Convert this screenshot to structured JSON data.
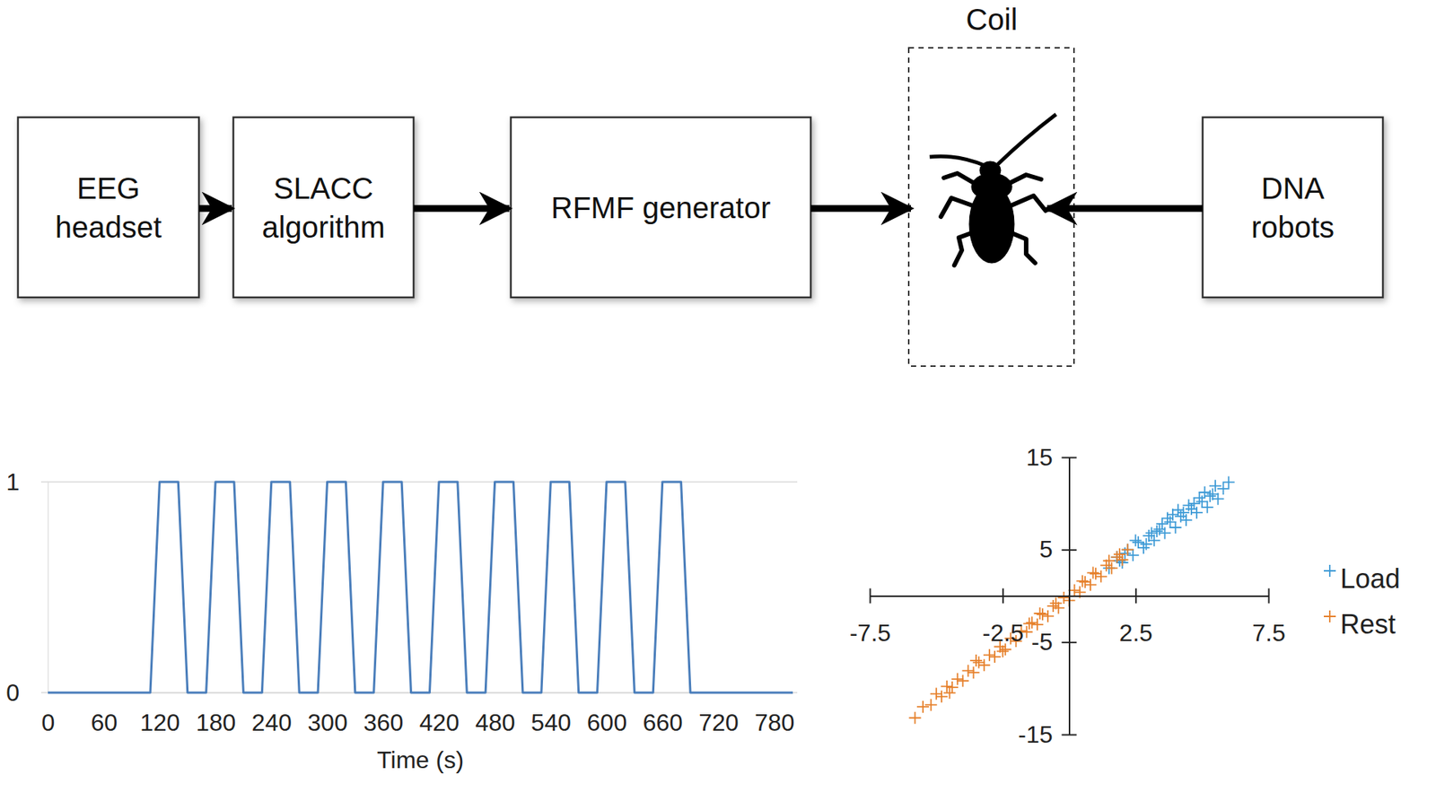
{
  "diagram": {
    "boxes": [
      {
        "lines": [
          "EEG",
          "headset"
        ]
      },
      {
        "lines": [
          "SLACC",
          "algorithm"
        ]
      },
      {
        "lines": [
          "RFMF generator"
        ]
      },
      {
        "lines": [
          "DNA",
          "robots"
        ]
      }
    ],
    "coil": "Coil"
  },
  "chart_data": [
    {
      "type": "line",
      "color": "#4a7ebb",
      "grid": true,
      "x_label": "Time (s)",
      "x": [
        0,
        10,
        20,
        30,
        40,
        50,
        60,
        70,
        80,
        90,
        100,
        110,
        120,
        130,
        140,
        150,
        160,
        170,
        180,
        190,
        200,
        210,
        220,
        230,
        240,
        250,
        260,
        270,
        280,
        290,
        300,
        310,
        320,
        330,
        340,
        350,
        360,
        370,
        380,
        390,
        400,
        410,
        420,
        430,
        440,
        450,
        460,
        470,
        480,
        490,
        500,
        510,
        520,
        530,
        540,
        550,
        560,
        570,
        580,
        590,
        600,
        610,
        620,
        630,
        640,
        650,
        660,
        670,
        680,
        690,
        700,
        710,
        720,
        730,
        740,
        750,
        760,
        770,
        780,
        790,
        800
      ],
      "values": [
        0,
        0,
        0,
        0,
        0,
        0,
        0,
        0,
        0,
        0,
        0,
        0,
        1,
        1,
        1,
        0,
        0,
        0,
        1,
        1,
        1,
        0,
        0,
        0,
        1,
        1,
        1,
        0,
        0,
        0,
        1,
        1,
        1,
        0,
        0,
        0,
        1,
        1,
        1,
        0,
        0,
        0,
        1,
        1,
        1,
        0,
        0,
        0,
        1,
        1,
        1,
        0,
        0,
        0,
        1,
        1,
        1,
        0,
        0,
        0,
        1,
        1,
        1,
        0,
        0,
        0,
        1,
        1,
        1,
        0,
        0,
        0,
        0,
        0,
        0,
        0,
        0,
        0,
        0,
        0,
        0
      ],
      "xlim": [
        0,
        800
      ],
      "xticks": [
        0,
        60,
        120,
        180,
        240,
        300,
        360,
        420,
        480,
        540,
        600,
        660,
        720,
        780
      ],
      "ylim": [
        0,
        1
      ],
      "yticks": [
        0,
        1
      ]
    },
    {
      "type": "scatter",
      "legend": "right",
      "xlim": [
        -7.5,
        7.5
      ],
      "xticks": [
        -7.5,
        -2.5,
        2.5,
        7.5
      ],
      "ylim": [
        -15,
        15
      ],
      "yticks": [
        -15,
        -5,
        5,
        15
      ],
      "series": [
        {
          "name": "Load",
          "color": "#3d9ad6",
          "marker": "plus",
          "x": [
            1.5,
            1.8,
            2.0,
            2.2,
            2.4,
            2.6,
            2.8,
            3.0,
            3.2,
            3.4,
            3.6,
            3.8,
            4.0,
            4.2,
            4.4,
            4.6,
            4.8,
            5.0,
            5.2,
            5.4,
            5.6,
            5.8,
            2.5,
            3.1,
            3.7,
            4.3,
            4.9,
            5.5,
            2.9,
            3.5,
            4.1,
            4.7,
            5.3,
            6.0,
            2.1,
            3.3,
            3.9,
            4.5,
            1.9,
            5.1
          ],
          "values": [
            3.0,
            4.2,
            3.6,
            5.0,
            4.4,
            5.8,
            5.2,
            6.5,
            6.0,
            7.2,
            6.8,
            8.0,
            7.4,
            8.6,
            8.2,
            9.4,
            9.0,
            10.2,
            9.6,
            11.0,
            10.5,
            11.6,
            6.0,
            6.8,
            8.4,
            9.0,
            10.6,
            11.9,
            5.6,
            7.8,
            9.3,
            10.0,
            10.8,
            12.3,
            4.6,
            7.0,
            8.8,
            9.8,
            3.8,
            11.2
          ]
        },
        {
          "name": "Rest",
          "color": "#e6802b",
          "marker": "plus",
          "x": [
            -5.8,
            -5.5,
            -5.2,
            -5.0,
            -4.8,
            -4.6,
            -4.4,
            -4.2,
            -4.0,
            -3.8,
            -3.6,
            -3.4,
            -3.2,
            -3.0,
            -2.8,
            -2.6,
            -2.4,
            -2.2,
            -2.0,
            -1.8,
            -1.6,
            -1.4,
            -1.2,
            -1.0,
            -0.8,
            -0.6,
            -0.4,
            -0.2,
            0,
            0.2,
            0.4,
            0.6,
            0.8,
            1.0,
            1.2,
            1.4,
            1.6,
            1.8,
            2.0,
            2.2,
            -3.5,
            -2.5,
            -1.5,
            -0.5,
            0.5,
            1.5,
            -4.5,
            -1.1,
            0.9,
            1.9
          ],
          "values": [
            -13.2,
            -12.0,
            -11.8,
            -10.6,
            -10.9,
            -9.8,
            -9.9,
            -9.0,
            -9.2,
            -8.1,
            -8.3,
            -7.2,
            -7.5,
            -6.4,
            -6.6,
            -5.5,
            -5.8,
            -4.6,
            -4.9,
            -3.8,
            -3.9,
            -2.9,
            -3.1,
            -2.0,
            -2.2,
            -1.1,
            -1.3,
            -0.2,
            -0.5,
            0.6,
            0.4,
            1.5,
            1.2,
            2.4,
            2.1,
            3.3,
            3.0,
            4.2,
            3.9,
            5.0,
            -7.0,
            -6.0,
            -3.0,
            -0.8,
            1.6,
            3.8,
            -10.5,
            -1.9,
            2.5,
            4.5
          ]
        }
      ]
    }
  ]
}
